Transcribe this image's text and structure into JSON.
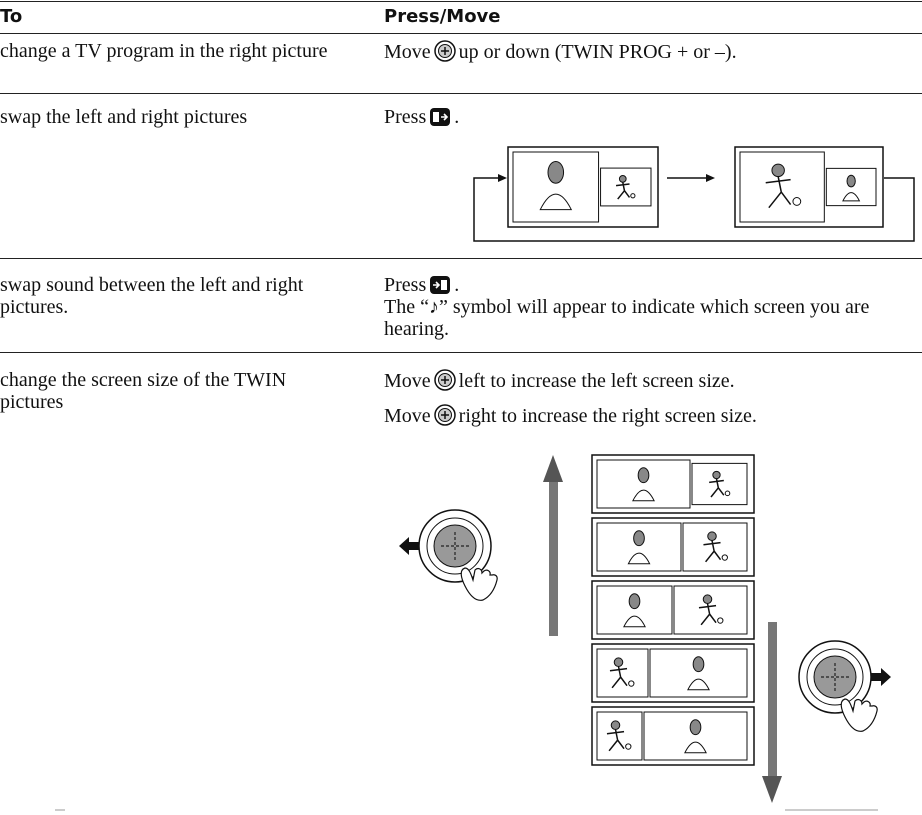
{
  "header": {
    "col1": "To",
    "col2": "Press/Move"
  },
  "rows": [
    {
      "to": "change a TV program in the right picture",
      "press": [
        "Move",
        "up or down (TWIN PROG + or –)."
      ]
    },
    {
      "to": "swap the left and right pictures",
      "press": [
        "Press",
        "."
      ]
    },
    {
      "to": "swap sound between the left and right pictures.",
      "press": [
        "Press",
        "."
      ],
      "note": "The “♪” symbol will appear to indicate which screen you are hearing."
    },
    {
      "to": "change the screen size of the TWIN pictures",
      "press": [
        "Move",
        "left to increase the left screen size."
      ],
      "press2": [
        "Move",
        "right to increase the right screen size."
      ]
    }
  ]
}
